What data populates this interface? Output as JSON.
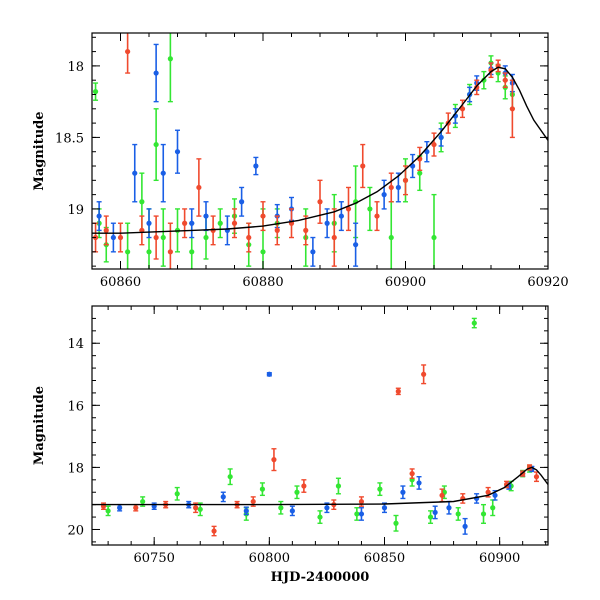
{
  "chart_data": [
    {
      "type": "scatter",
      "title": "",
      "xlabel": "",
      "ylabel": "Magnitude",
      "xlim": [
        60856,
        60920
      ],
      "ylim": [
        19.42,
        17.77
      ],
      "y_inverted": true,
      "grid": false,
      "xticks": [
        60860,
        60880,
        60900,
        60920
      ],
      "xtick_labels": [
        "60860",
        "60880",
        "60900",
        "60920"
      ],
      "yticks": [
        18,
        18.5,
        19
      ],
      "ytick_labels": [
        "18",
        "18.5",
        "19"
      ],
      "colors": {
        "green": "#33e633",
        "blue": "#1a5fe6",
        "red": "#f04a2e",
        "model": "#000000"
      },
      "model_curve": {
        "x": [
          60856,
          60860,
          60865,
          60870,
          60875,
          60880,
          60885,
          60890,
          60893,
          60896,
          60899,
          60902,
          60905,
          60908,
          60910,
          60912,
          60913,
          60914,
          60915,
          60916,
          60917,
          60918,
          60920
        ],
        "y": [
          19.17,
          19.17,
          19.16,
          19.15,
          19.14,
          19.12,
          19.08,
          19.02,
          18.96,
          18.88,
          18.77,
          18.63,
          18.46,
          18.27,
          18.14,
          18.04,
          18.01,
          18.02,
          18.08,
          18.17,
          18.28,
          18.38,
          18.52
        ]
      },
      "series": [
        {
          "color": "green",
          "points": [
            [
              60856.5,
              18.18,
              0.06
            ],
            [
              60857,
              19.1,
              0.1
            ],
            [
              60858,
              19.25,
              0.12
            ],
            [
              60861,
              19.3,
              0.2
            ],
            [
              60863,
              18.95,
              0.2
            ],
            [
              60864,
              19.3,
              0.3
            ],
            [
              60865,
              18.55,
              0.25
            ],
            [
              60866,
              19.2,
              0.2
            ],
            [
              60867,
              17.95,
              0.3
            ],
            [
              60868,
              19.15,
              0.15
            ],
            [
              60870,
              19.3,
              0.2
            ],
            [
              60872,
              19.2,
              0.15
            ],
            [
              60874,
              19.1,
              0.1
            ],
            [
              60876,
              19.05,
              0.12
            ],
            [
              60878,
              19.25,
              0.15
            ],
            [
              60880,
              19.3,
              0.3
            ],
            [
              60882,
              19.1,
              0.1
            ],
            [
              60886,
              19.2,
              0.2
            ],
            [
              60890,
              19.1,
              0.2
            ],
            [
              60893,
              18.95,
              0.25
            ],
            [
              60895,
              19.0,
              0.15
            ],
            [
              60898,
              19.2,
              0.25
            ],
            [
              60900,
              18.8,
              0.15
            ],
            [
              60902,
              18.75,
              0.12
            ],
            [
              60904,
              19.2,
              0.3
            ],
            [
              60905,
              18.5,
              0.1
            ],
            [
              60907,
              18.35,
              0.08
            ],
            [
              60909,
              18.2,
              0.07
            ],
            [
              60911,
              18.1,
              0.06
            ],
            [
              60912,
              17.98,
              0.05
            ],
            [
              60913,
              18.05,
              0.06
            ],
            [
              60914,
              18.15,
              0.08
            ],
            [
              60915,
              18.2,
              0.1
            ]
          ]
        },
        {
          "color": "blue",
          "points": [
            [
              60857,
              19.05,
              0.1
            ],
            [
              60859,
              19.2,
              0.1
            ],
            [
              60862,
              18.75,
              0.2
            ],
            [
              60864,
              19.1,
              0.1
            ],
            [
              60865,
              18.05,
              0.2
            ],
            [
              60866,
              18.75,
              0.2
            ],
            [
              60868,
              18.6,
              0.15
            ],
            [
              60870,
              19.1,
              0.1
            ],
            [
              60872,
              19.05,
              0.1
            ],
            [
              60875,
              19.15,
              0.1
            ],
            [
              60877,
              18.95,
              0.1
            ],
            [
              60879,
              18.7,
              0.06
            ],
            [
              60882,
              19.05,
              0.08
            ],
            [
              60884,
              19.0,
              0.08
            ],
            [
              60887,
              19.3,
              0.1
            ],
            [
              60889,
              19.1,
              0.1
            ],
            [
              60891,
              19.05,
              0.1
            ],
            [
              60893,
              19.25,
              0.15
            ],
            [
              60897,
              18.9,
              0.1
            ],
            [
              60899,
              18.85,
              0.1
            ],
            [
              60901,
              18.7,
              0.08
            ],
            [
              60903,
              18.6,
              0.07
            ],
            [
              60905,
              18.5,
              0.06
            ],
            [
              60907,
              18.35,
              0.05
            ],
            [
              60909,
              18.2,
              0.05
            ],
            [
              60910,
              18.12,
              0.05
            ],
            [
              60912,
              18.02,
              0.04
            ],
            [
              60914,
              18.05,
              0.05
            ],
            [
              60915,
              18.12,
              0.06
            ]
          ]
        },
        {
          "color": "red",
          "points": [
            [
              60856.5,
              19.2,
              0.1
            ],
            [
              60858,
              19.15,
              0.1
            ],
            [
              60860,
              19.2,
              0.1
            ],
            [
              60861,
              17.9,
              0.15
            ],
            [
              60863,
              19.15,
              0.1
            ],
            [
              60865,
              19.2,
              0.15
            ],
            [
              60867,
              19.3,
              0.2
            ],
            [
              60869,
              19.1,
              0.1
            ],
            [
              60871,
              18.85,
              0.2
            ],
            [
              60873,
              19.15,
              0.1
            ],
            [
              60876,
              19.1,
              0.1
            ],
            [
              60878,
              19.2,
              0.1
            ],
            [
              60880,
              19.05,
              0.1
            ],
            [
              60882,
              19.15,
              0.1
            ],
            [
              60884,
              19.1,
              0.1
            ],
            [
              60886,
              19.15,
              0.1
            ],
            [
              60888,
              18.95,
              0.15
            ],
            [
              60890,
              19.2,
              0.2
            ],
            [
              60892,
              19.0,
              0.15
            ],
            [
              60894,
              18.7,
              0.15
            ],
            [
              60896,
              19.05,
              0.1
            ],
            [
              60898,
              18.85,
              0.1
            ],
            [
              60900,
              18.8,
              0.1
            ],
            [
              60902,
              18.65,
              0.08
            ],
            [
              60904,
              18.55,
              0.08
            ],
            [
              60906,
              18.4,
              0.07
            ],
            [
              60908,
              18.3,
              0.06
            ],
            [
              60910,
              18.15,
              0.05
            ],
            [
              60912,
              18.03,
              0.05
            ],
            [
              60913,
              18.0,
              0.04
            ],
            [
              60914,
              18.1,
              0.05
            ],
            [
              60915,
              18.3,
              0.2
            ]
          ]
        }
      ]
    },
    {
      "type": "scatter",
      "title": "",
      "xlabel": "HJD-2400000",
      "ylabel": "Magnitude",
      "xlim": [
        60723,
        60921
      ],
      "ylim": [
        20.5,
        12.8
      ],
      "y_inverted": true,
      "grid": false,
      "xticks": [
        60750,
        60800,
        60850,
        60900
      ],
      "xtick_labels": [
        "60750",
        "60800",
        "60850",
        "60900"
      ],
      "yticks": [
        14,
        16,
        18,
        20
      ],
      "ytick_labels": [
        "14",
        "16",
        "18",
        "20"
      ],
      "colors": {
        "green": "#33e633",
        "blue": "#1a5fe6",
        "red": "#f04a2e",
        "model": "#000000"
      },
      "model_curve": {
        "x": [
          60723,
          60750,
          60800,
          60850,
          60880,
          60895,
          60902,
          60908,
          60912,
          60914,
          60916,
          60918,
          60921
        ],
        "y": [
          19.2,
          19.2,
          19.2,
          19.18,
          19.1,
          18.9,
          18.65,
          18.3,
          18.05,
          18.0,
          18.08,
          18.25,
          18.55
        ]
      },
      "series": [
        {
          "color": "green",
          "points": [
            [
              60730,
              19.4,
              0.15
            ],
            [
              60745,
              19.1,
              0.15
            ],
            [
              60760,
              18.85,
              0.2
            ],
            [
              60770,
              19.35,
              0.2
            ],
            [
              60783,
              18.3,
              0.25
            ],
            [
              60790,
              19.5,
              0.2
            ],
            [
              60797,
              18.7,
              0.2
            ],
            [
              60805,
              19.3,
              0.2
            ],
            [
              60812,
              18.8,
              0.2
            ],
            [
              60822,
              19.6,
              0.2
            ],
            [
              60830,
              18.6,
              0.25
            ],
            [
              60838,
              19.5,
              0.2
            ],
            [
              60848,
              18.7,
              0.2
            ],
            [
              60855,
              19.8,
              0.25
            ],
            [
              60862,
              18.4,
              0.2
            ],
            [
              60870,
              19.6,
              0.2
            ],
            [
              60876,
              18.8,
              0.2
            ],
            [
              60882,
              19.5,
              0.2
            ],
            [
              60889,
              13.35,
              0.15
            ],
            [
              60893,
              19.5,
              0.3
            ],
            [
              60897,
              19.3,
              0.25
            ],
            [
              60905,
              18.6,
              0.15
            ],
            [
              60910,
              18.2,
              0.1
            ],
            [
              60913,
              18.05,
              0.1
            ]
          ]
        },
        {
          "color": "blue",
          "points": [
            [
              60735,
              19.3,
              0.1
            ],
            [
              60750,
              19.25,
              0.1
            ],
            [
              60765,
              19.2,
              0.1
            ],
            [
              60780,
              18.95,
              0.15
            ],
            [
              60790,
              19.4,
              0.12
            ],
            [
              60800,
              15.0,
              0.05
            ],
            [
              60810,
              19.4,
              0.15
            ],
            [
              60825,
              19.3,
              0.15
            ],
            [
              60840,
              19.5,
              0.2
            ],
            [
              60850,
              19.3,
              0.15
            ],
            [
              60858,
              18.8,
              0.2
            ],
            [
              60865,
              18.5,
              0.2
            ],
            [
              60872,
              19.45,
              0.2
            ],
            [
              60878,
              19.3,
              0.2
            ],
            [
              60885,
              19.9,
              0.25
            ],
            [
              60890,
              19.0,
              0.15
            ],
            [
              60898,
              18.9,
              0.15
            ],
            [
              60904,
              18.6,
              0.1
            ],
            [
              60910,
              18.2,
              0.08
            ],
            [
              60914,
              18.05,
              0.08
            ]
          ]
        },
        {
          "color": "red",
          "points": [
            [
              60728,
              19.25,
              0.1
            ],
            [
              60742,
              19.3,
              0.1
            ],
            [
              60755,
              19.2,
              0.1
            ],
            [
              60768,
              19.3,
              0.15
            ],
            [
              60776,
              20.05,
              0.15
            ],
            [
              60786,
              19.2,
              0.1
            ],
            [
              60793,
              19.1,
              0.15
            ],
            [
              60802,
              17.75,
              0.35
            ],
            [
              60815,
              18.6,
              0.2
            ],
            [
              60828,
              19.2,
              0.15
            ],
            [
              60840,
              19.1,
              0.15
            ],
            [
              60856,
              15.55,
              0.1
            ],
            [
              60862,
              18.2,
              0.15
            ],
            [
              60867,
              15.0,
              0.3
            ],
            [
              60875,
              18.9,
              0.2
            ],
            [
              60884,
              19.0,
              0.15
            ],
            [
              60895,
              18.8,
              0.15
            ],
            [
              60903,
              18.55,
              0.1
            ],
            [
              60910,
              18.2,
              0.08
            ],
            [
              60913,
              18.0,
              0.08
            ],
            [
              60916,
              18.3,
              0.15
            ]
          ]
        }
      ]
    }
  ]
}
